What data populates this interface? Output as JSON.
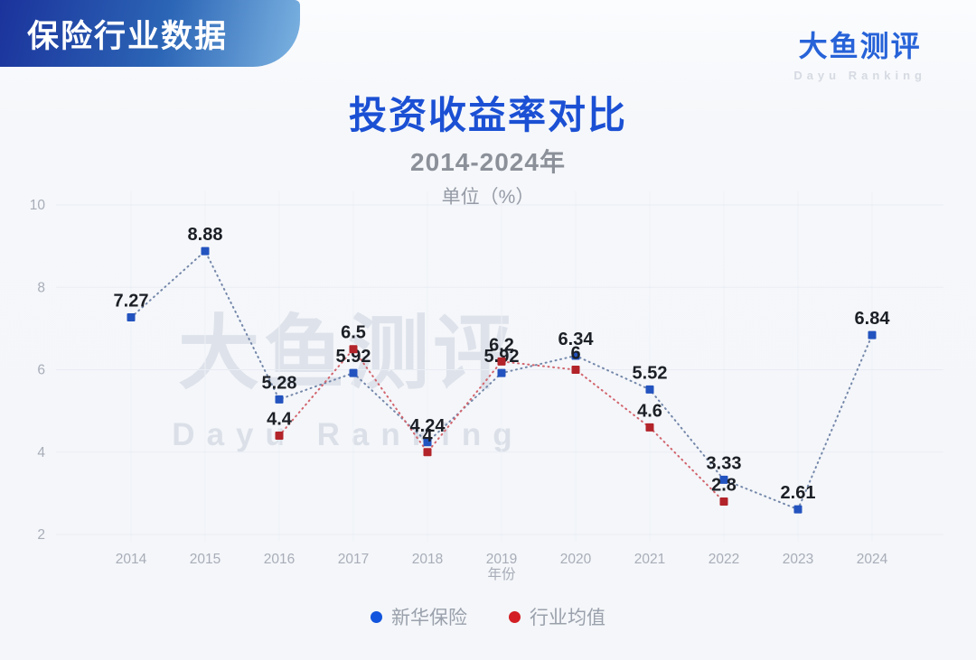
{
  "header": {
    "badge_label": "保险行业数据",
    "brand_name": "大鱼测评",
    "brand_sub": "Dayu Ranking"
  },
  "titles": {
    "main": "投资收益率对比",
    "subtitle": "2014-2024年",
    "unit": "单位（%）"
  },
  "watermark": {
    "line1": "大鱼测评",
    "line2": "Dayu Ranking"
  },
  "chart_data": {
    "type": "line",
    "title": "投资收益率对比",
    "subtitle": "2014-2024年",
    "unit": "单位（%）",
    "categories": [
      "2014",
      "2015",
      "2016",
      "2017",
      "2018",
      "2019",
      "2020",
      "2021",
      "2022",
      "2023",
      "2024"
    ],
    "xlabel": "年份",
    "ylabel": "",
    "yticks": [
      2,
      4,
      6,
      8,
      10
    ],
    "ylim": [
      2,
      10
    ],
    "grid": true,
    "line_style": "dotted",
    "marker": "square",
    "legend_position": "bottom",
    "series": [
      {
        "name": "新华保险",
        "values": [
          7.27,
          8.88,
          5.28,
          5.92,
          4.24,
          5.92,
          6.34,
          5.52,
          3.33,
          2.61,
          6.84
        ],
        "marker_color": "#2353bf",
        "line_color": "#7487aa",
        "legend_color": "#1254dd"
      },
      {
        "name": "行业均值",
        "values": [
          null,
          null,
          4.4,
          6.5,
          4,
          6.2,
          6,
          4.6,
          2.8,
          null,
          null
        ],
        "marker_color": "#b2242a",
        "line_color": "#d2646d",
        "legend_color": "#d21e24"
      }
    ]
  },
  "colors": {
    "title_blue": "#1b50d4",
    "badge_gradient_start": "#1b339c",
    "badge_gradient_end": "#7db4e2",
    "axis_text": "#a8adb8",
    "grid_line": "#e9edf4",
    "data_label": "#1c2026"
  }
}
